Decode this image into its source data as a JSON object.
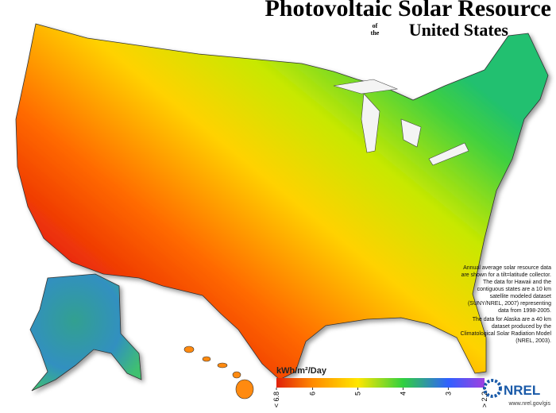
{
  "header": {
    "title": "Photovoltaic Solar Resource",
    "of": "of",
    "the": "the",
    "subtitle": "United States"
  },
  "note": [
    "Annual average solar resource data are shown for a tilt=latitude collector. The data for Hawaii and the contiguous states are a 10 km satellite modeled dataset (SUNY/NREL, 2007) representing data from 1998-2005.",
    "The data for Alaska are a 40 km dataset produced by the Climatological Solar Radiation Model (NREL, 2003)."
  ],
  "legend": {
    "title": "kWh/m²/Day",
    "ticks": [
      {
        "value": 6.8,
        "label": "< 6.8"
      },
      6.0,
      5.0,
      4.0,
      3.0,
      {
        "value": 2.2,
        "label": "> 2.2"
      }
    ],
    "colors": [
      "#e0200a",
      "#ff8a00",
      "#ffe600",
      "#30d040",
      "#3060ff",
      "#a040e0"
    ]
  },
  "logo": {
    "name": "NREL",
    "url": "www.nrel.gov/gis"
  }
}
